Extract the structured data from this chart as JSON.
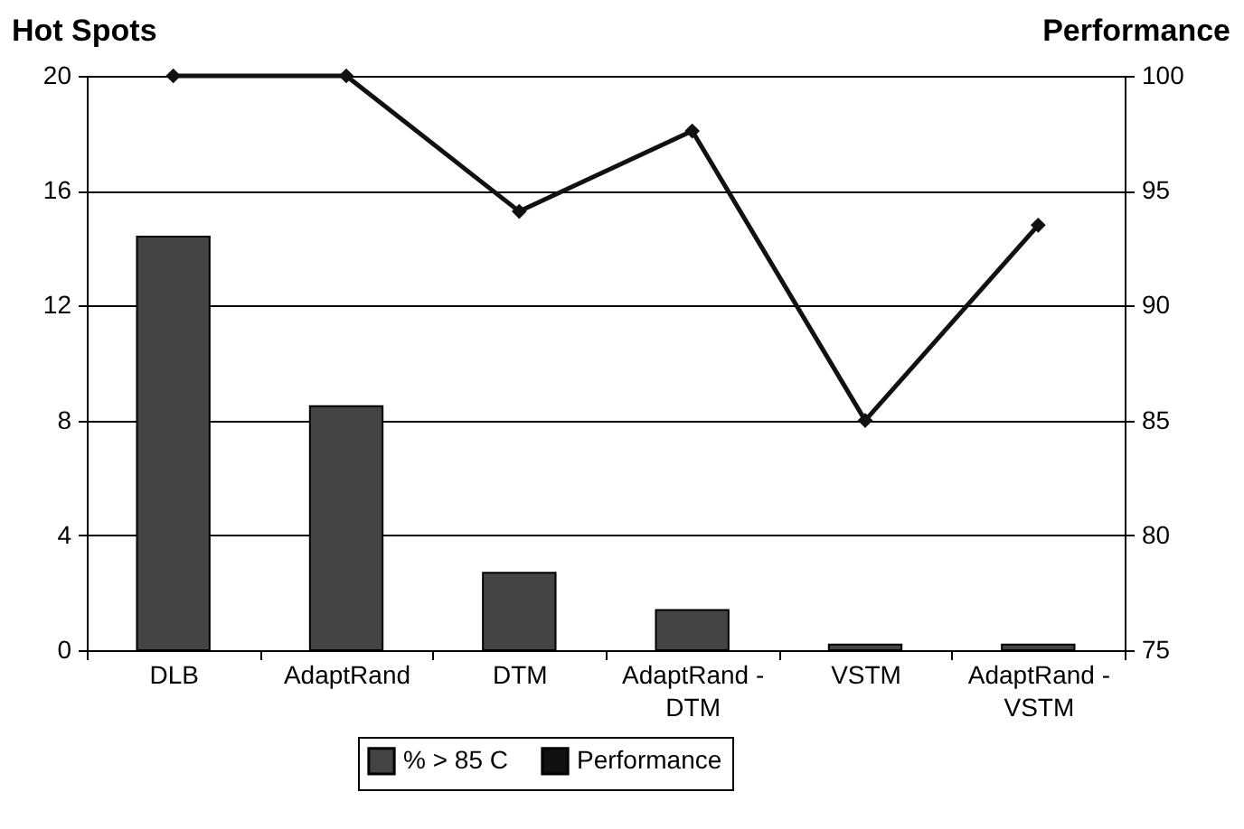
{
  "chart_data": {
    "type": "bar",
    "ylabel": "Hot Spots",
    "y2label": "Performance",
    "categories": [
      "DLB",
      "AdaptRand",
      "DTM",
      "AdaptRand - DTM",
      "VSTM",
      "AdaptRand - VSTM"
    ],
    "series": [
      {
        "name": "% > 85 C",
        "color": "#444444",
        "values": [
          14.4,
          8.5,
          2.7,
          1.4,
          0.2,
          0.2
        ]
      },
      {
        "name": "Performance",
        "type": "line",
        "axis": "y2",
        "color": "#111111",
        "values": [
          100,
          100,
          94.1,
          97.6,
          85.0,
          93.5
        ]
      }
    ],
    "ylim": [
      0,
      20
    ],
    "yticks": [
      0,
      4,
      8,
      12,
      16,
      20
    ],
    "y2lim": [
      75,
      100
    ],
    "y2ticks": [
      75,
      80,
      85,
      90,
      95,
      100
    ],
    "grid": "y",
    "legend": "bottom",
    "marker": "diamond",
    "line_style": "solid"
  }
}
